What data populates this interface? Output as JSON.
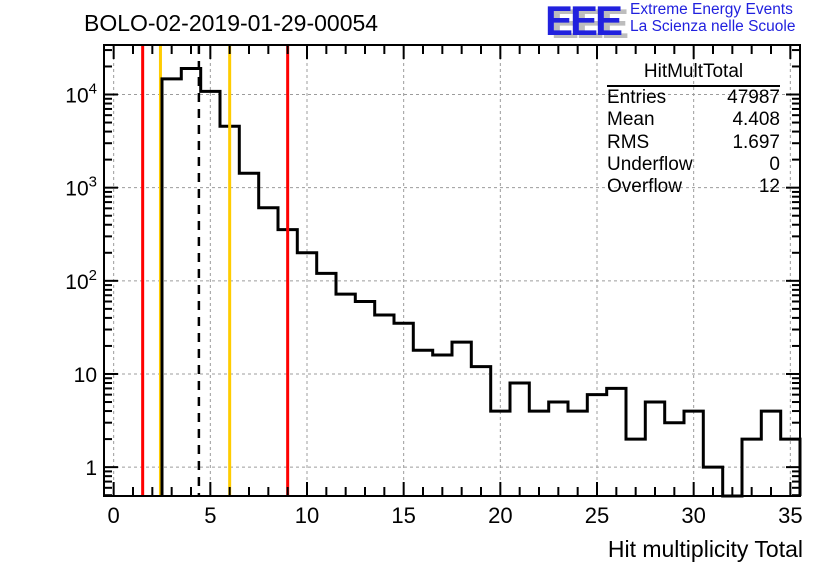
{
  "title": "BOLO-02-2019-01-29-00054",
  "logo": {
    "acronym": "EEE",
    "line1": "Extreme Energy Events",
    "line2": "La Scienza nelle Scuole",
    "color": "#2121de"
  },
  "stats": {
    "header": "HitMultTotal",
    "rows": [
      {
        "label": "Entries",
        "value": "47987"
      },
      {
        "label": "Mean",
        "value": "4.408"
      },
      {
        "label": "RMS",
        "value": "1.697"
      },
      {
        "label": "Underflow",
        "value": "0"
      },
      {
        "label": "Overflow",
        "value": "12"
      }
    ]
  },
  "chart_data": {
    "type": "bar",
    "title": "BOLO-02-2019-01-29-00054",
    "xlabel": "Hit multiplicity Total",
    "ylabel": "",
    "y_scale": "log",
    "grid": true,
    "xlim": [
      -0.5,
      35.5
    ],
    "ylim": [
      0.49,
      34000
    ],
    "bin_width": 1,
    "categories": [
      3,
      4,
      5,
      6,
      7,
      8,
      9,
      10,
      11,
      12,
      13,
      14,
      15,
      16,
      17,
      18,
      19,
      20,
      21,
      22,
      23,
      24,
      25,
      26,
      27,
      28,
      29,
      30,
      31,
      32,
      33,
      34,
      35
    ],
    "values": [
      14700,
      19000,
      10800,
      4570,
      1430,
      610,
      355,
      200,
      120,
      72,
      60,
      43,
      35,
      18,
      16,
      22,
      12,
      4,
      8,
      4,
      5,
      4,
      6,
      7,
      2,
      5,
      3,
      4,
      1,
      0,
      2,
      4,
      2
    ],
    "x_major_ticks": [
      0,
      5,
      10,
      15,
      20,
      25,
      30,
      35
    ],
    "x_tick_labels": [
      "0",
      "5",
      "10",
      "15",
      "20",
      "25",
      "30",
      "35"
    ],
    "y_major_ticks": [
      1,
      10,
      100,
      1000,
      10000
    ],
    "y_tick_labels": [
      {
        "base": "1",
        "exp": ""
      },
      {
        "base": "10",
        "exp": ""
      },
      {
        "base": "10",
        "exp": "2"
      },
      {
        "base": "10",
        "exp": "3"
      },
      {
        "base": "10",
        "exp": "4"
      }
    ],
    "marker_lines": [
      {
        "x": 1.5,
        "color": "#ff0000",
        "style": "solid",
        "layer": "back"
      },
      {
        "x": 2.42,
        "color": "#ffcc00",
        "style": "solid",
        "layer": "back"
      },
      {
        "x": 4.408,
        "color": "#000000",
        "style": "dashed",
        "layer": "front"
      },
      {
        "x": 6.0,
        "color": "#ffcc00",
        "style": "solid",
        "layer": "front"
      },
      {
        "x": 9.0,
        "color": "#ff0000",
        "style": "solid",
        "layer": "front"
      }
    ],
    "hist_color": "#000000",
    "grid_color": "#9c9c9c"
  }
}
